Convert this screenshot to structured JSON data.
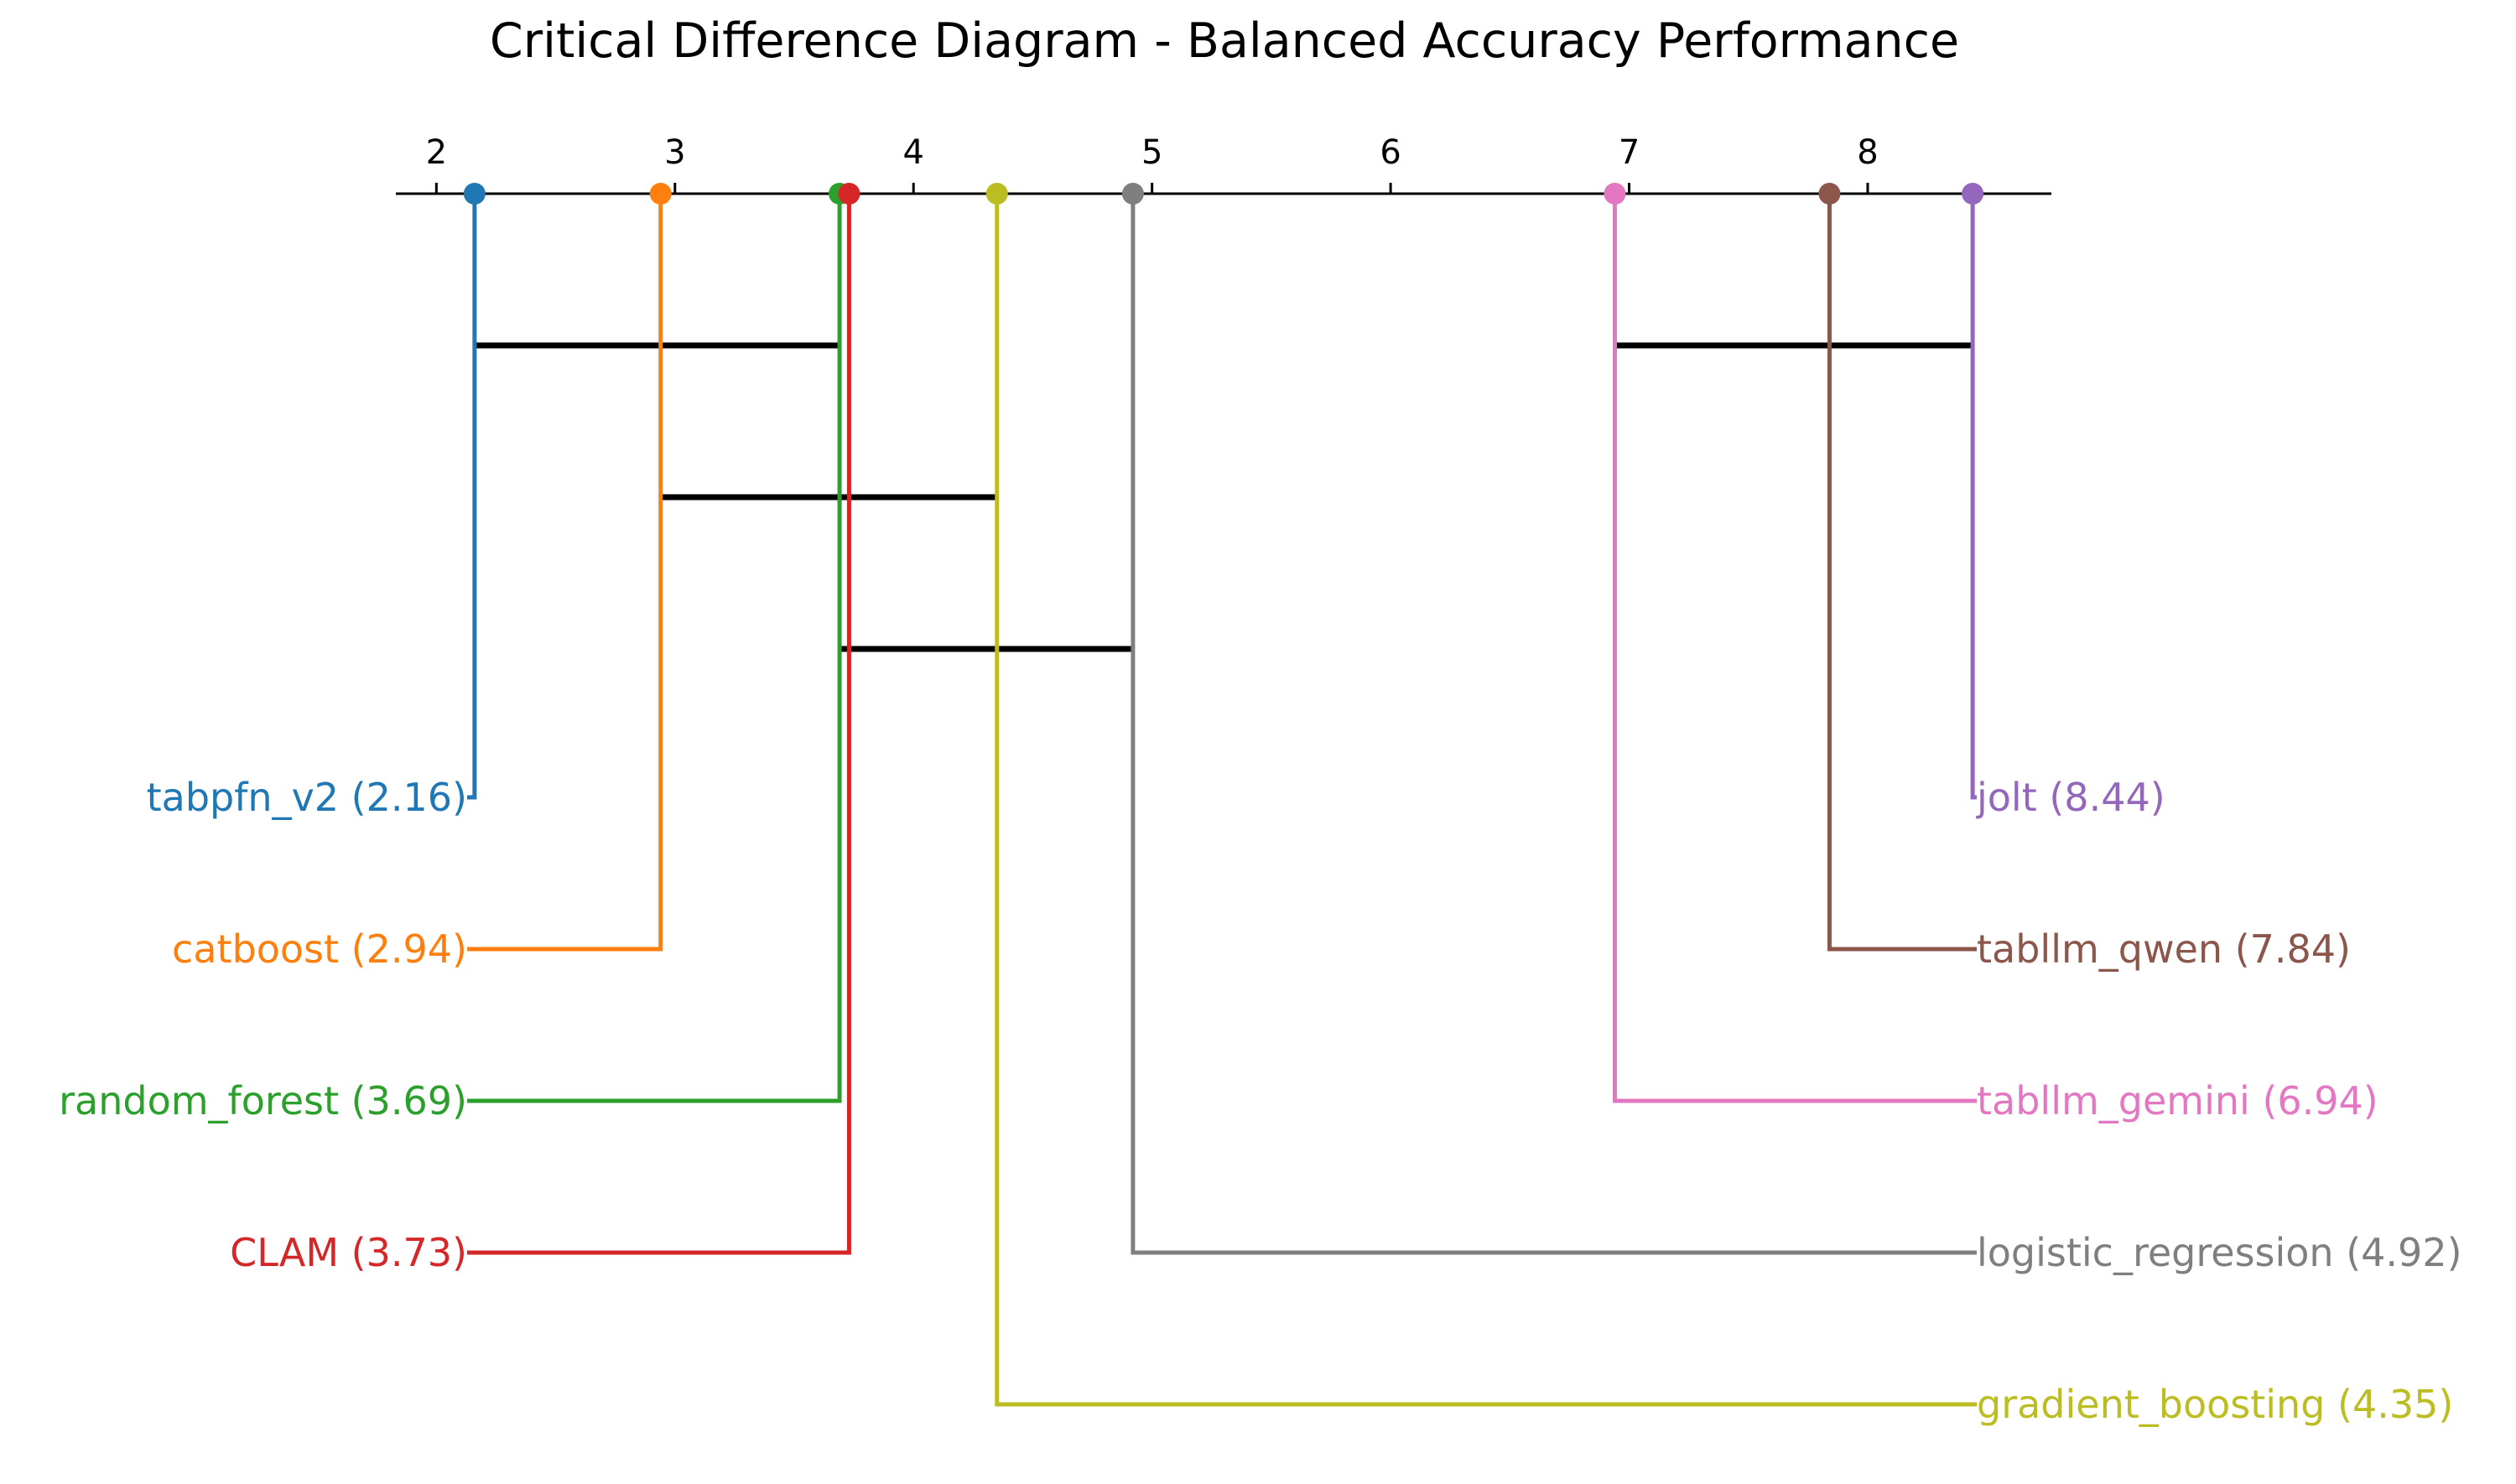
{
  "chart_data": {
    "type": "critical-difference",
    "title": "Critical Difference Diagram - Balanced Accuracy Performance",
    "axis": {
      "range": [
        1.83,
        8.77
      ],
      "ticks": [
        2,
        3,
        4,
        5,
        6,
        7,
        8
      ]
    },
    "methods": [
      {
        "name": "tabpfn_v2",
        "rank": 2.16,
        "label": "tabpfn_v2 (2.16)",
        "color": "#1f77b4",
        "side": "left"
      },
      {
        "name": "catboost",
        "rank": 2.94,
        "label": "catboost (2.94)",
        "color": "#ff7f0e",
        "side": "left"
      },
      {
        "name": "random_forest",
        "rank": 3.69,
        "label": "random_forest (3.69)",
        "color": "#2ca02c",
        "side": "left"
      },
      {
        "name": "CLAM",
        "rank": 3.73,
        "label": "CLAM (3.73)",
        "color": "#d62728",
        "side": "left"
      },
      {
        "name": "jolt",
        "rank": 8.44,
        "label": "jolt (8.44)",
        "color": "#9467bd",
        "side": "right"
      },
      {
        "name": "tabllm_qwen",
        "rank": 7.84,
        "label": "tabllm_qwen (7.84)",
        "color": "#8c564b",
        "side": "right"
      },
      {
        "name": "tabllm_gemini",
        "rank": 6.94,
        "label": "tabllm_gemini (6.94)",
        "color": "#e377c2",
        "side": "right"
      },
      {
        "name": "logistic_regression",
        "rank": 4.92,
        "label": "logistic_regression (4.92)",
        "color": "#7f7f7f",
        "side": "right"
      },
      {
        "name": "gradient_boosting",
        "rank": 4.35,
        "label": "gradient_boosting (4.35)",
        "color": "#bcbd22",
        "side": "right"
      }
    ],
    "cliques": [
      [
        2.16,
        3.69
      ],
      [
        2.94,
        4.35
      ],
      [
        3.69,
        4.92
      ],
      [
        6.94,
        8.44
      ]
    ]
  }
}
